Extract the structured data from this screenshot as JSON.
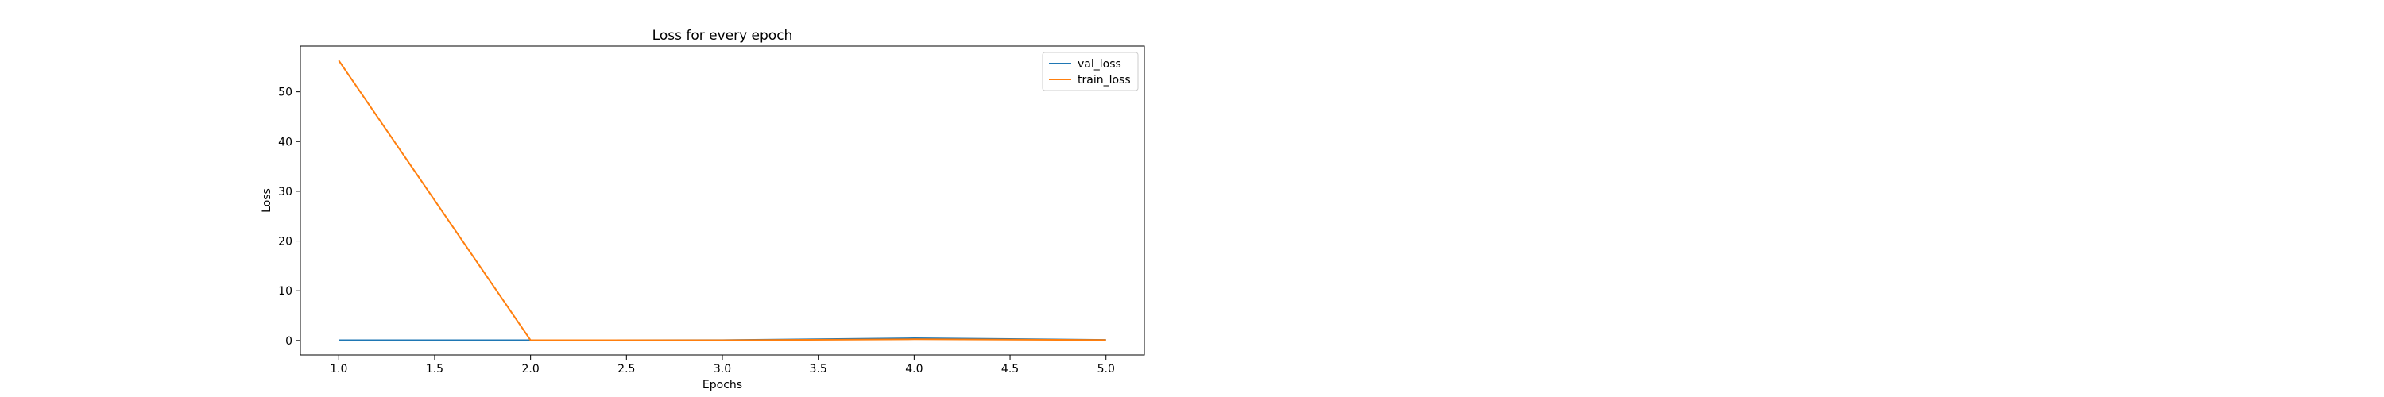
{
  "chart_data": {
    "type": "line",
    "title": "Loss for every epoch",
    "xlabel": "Epochs",
    "ylabel": "Loss",
    "xlim": [
      0.8,
      5.2
    ],
    "ylim": [
      -2.9,
      59.2
    ],
    "xticks": [
      "1.0",
      "1.5",
      "2.0",
      "2.5",
      "3.0",
      "3.5",
      "4.0",
      "4.5",
      "5.0"
    ],
    "yticks": [
      "0",
      "10",
      "20",
      "30",
      "40",
      "50"
    ],
    "x": [
      1,
      2,
      3,
      4,
      5
    ],
    "series": [
      {
        "name": "val_loss",
        "color": "#1f77b4",
        "values": [
          0.06,
          0.06,
          0.07,
          0.45,
          0.12
        ]
      },
      {
        "name": "train_loss",
        "color": "#ff7f0e",
        "values": [
          56.3,
          0.07,
          0.06,
          0.25,
          0.1
        ]
      }
    ],
    "legend_position": "top-right",
    "grid": false
  }
}
